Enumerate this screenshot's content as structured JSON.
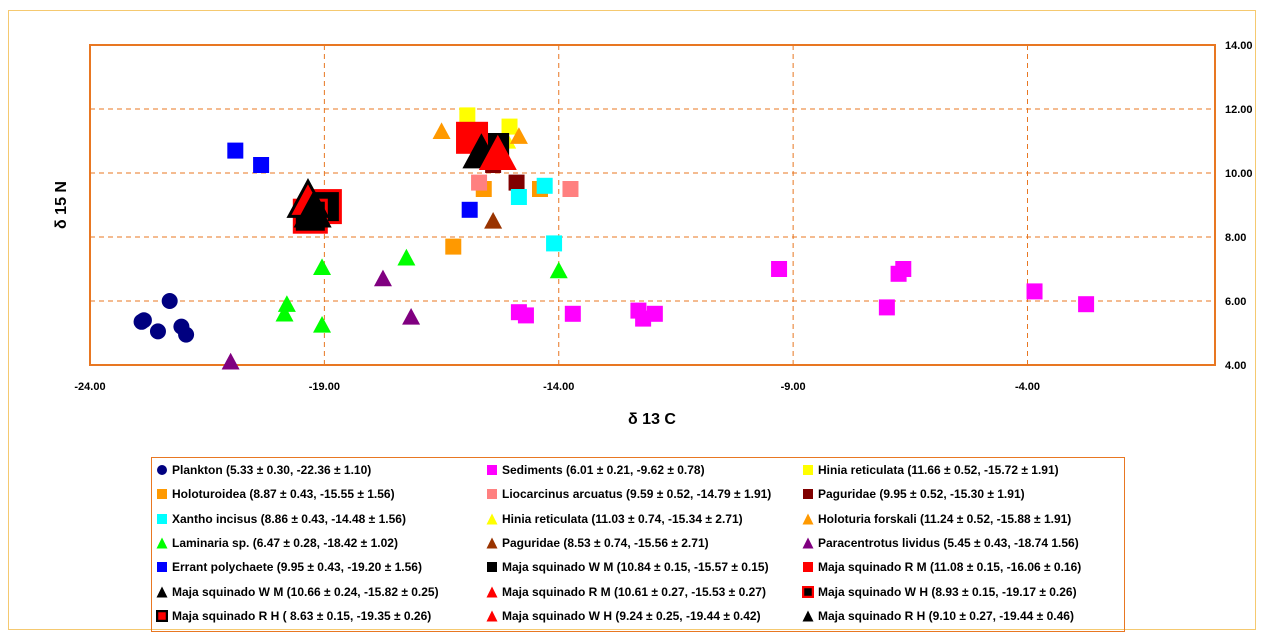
{
  "chart_data": {
    "type": "scatter",
    "title": "",
    "xlabel": "δ 13 C",
    "ylabel": "δ 15 N",
    "xlim": [
      -24,
      0
    ],
    "ylim": [
      4,
      14
    ],
    "x_ticks": [
      "-24.00",
      "-19.00",
      "-14.00",
      "-9.00",
      "-4.00"
    ],
    "y_ticks": [
      "4.00",
      "6.00",
      "8.00",
      "10.00",
      "12.00",
      "14.00"
    ],
    "grid": true,
    "y_axis_side": "right",
    "legend_position": "bottom",
    "series": [
      {
        "name": "Plankton (5.33 ± 0.30, -22.36 ± 1.10)",
        "marker": "circle",
        "color": "#000080",
        "points": [
          [
            -22.85,
            5.4
          ],
          [
            -22.3,
            6.0
          ],
          [
            -22.55,
            5.05
          ],
          [
            -22.05,
            5.2
          ],
          [
            -21.95,
            4.95
          ],
          [
            -22.9,
            5.35
          ]
        ]
      },
      {
        "name": "Sediments (6.01 ± 0.21, -9.62 ± 0.78)",
        "marker": "square",
        "color": "#ff00ff",
        "points": [
          [
            -14.85,
            5.65
          ],
          [
            -14.7,
            5.55
          ],
          [
            -13.7,
            5.6
          ],
          [
            -12.3,
            5.7
          ],
          [
            -12.2,
            5.45
          ],
          [
            -11.95,
            5.6
          ],
          [
            -9.3,
            7.0
          ],
          [
            -7.0,
            5.8
          ],
          [
            -6.75,
            6.85
          ],
          [
            -6.65,
            7.0
          ],
          [
            -3.85,
            6.3
          ],
          [
            -2.75,
            5.9
          ]
        ]
      },
      {
        "name": "Hinia reticulata (11.66 ± 0.52, -15.72 ± 1.91)",
        "marker": "square",
        "color": "#ffff00",
        "points": [
          [
            -15.95,
            11.8
          ],
          [
            -15.05,
            11.45
          ]
        ]
      },
      {
        "name": "Holoturoidea (8.87 ± 0.43, -15.55 ± 1.56)",
        "marker": "square",
        "color": "#ff9900",
        "points": [
          [
            -16.25,
            7.7
          ],
          [
            -15.6,
            9.5
          ],
          [
            -14.4,
            9.5
          ]
        ]
      },
      {
        "name": "Liocarcinus arcuatus (9.59 ± 0.52, -14.79 ± 1.91)",
        "marker": "square",
        "color": "#ff8080",
        "points": [
          [
            -15.7,
            9.7
          ],
          [
            -13.75,
            9.5
          ]
        ]
      },
      {
        "name": "Paguridae (9.95 ± 0.52, -15.30 ± 1.91)",
        "marker": "square",
        "color": "#800000",
        "points": [
          [
            -15.4,
            10.25
          ],
          [
            -14.9,
            9.7
          ]
        ]
      },
      {
        "name": "Xantho incisus (8.86 ± 0.43, -14.48 ± 1.56)",
        "marker": "square",
        "color": "#00ffff",
        "points": [
          [
            -14.3,
            9.6
          ],
          [
            -14.85,
            9.25
          ],
          [
            -14.1,
            7.8
          ]
        ]
      },
      {
        "name": "Hinia reticulata (11.03 ± 0.74, -15.34 ± 2.71)",
        "marker": "triangle",
        "color": "#ffff00",
        "points": [
          [
            -15.1,
            11.0
          ]
        ]
      },
      {
        "name": "Holoturia forskali (11.24 ± 0.52, -15.88 ± 1.91)",
        "marker": "triangle",
        "color": "#ff9900",
        "points": [
          [
            -16.5,
            11.3
          ],
          [
            -14.85,
            11.15
          ]
        ]
      },
      {
        "name": "Laminaria sp.  (6.47 ± 0.28, -18.42 ± 1.02)",
        "marker": "triangle",
        "color": "#00ff00",
        "points": [
          [
            -19.8,
            5.9
          ],
          [
            -19.85,
            5.6
          ],
          [
            -19.05,
            7.05
          ],
          [
            -19.05,
            5.25
          ],
          [
            -17.25,
            7.35
          ],
          [
            -14.0,
            6.95
          ]
        ]
      },
      {
        "name": "Paguridae (8.53 ± 0.74, -15.56 ± 2.71)",
        "marker": "triangle",
        "color": "#993300",
        "points": [
          [
            -15.4,
            8.5
          ]
        ]
      },
      {
        "name": "Paracentrotus lividus (5.45 ± 0.43, -18.74  1.56)",
        "marker": "triangle",
        "color": "#800080",
        "points": [
          [
            -21.0,
            4.1
          ],
          [
            -17.75,
            6.7
          ],
          [
            -17.15,
            5.5
          ]
        ]
      },
      {
        "name": "Errant polychaete (9.95 ± 0.43, -19.20 ± 1.56)",
        "marker": "square",
        "color": "#0000ff",
        "points": [
          [
            -20.9,
            10.7
          ],
          [
            -20.35,
            10.25
          ],
          [
            -15.9,
            8.85
          ]
        ]
      },
      {
        "name": "Maja squinado  W M (10.84 ± 0.15, -15.57 ± 0.15)",
        "marker": "square-big",
        "color": "#000000",
        "points": [
          [
            -15.4,
            10.75
          ]
        ]
      },
      {
        "name": "Maja squinado  R M (11.08 ± 0.15, -16.06 ± 0.16)",
        "marker": "square-big",
        "color": "#ff0000",
        "points": [
          [
            -15.85,
            11.1
          ]
        ]
      },
      {
        "name": "Maja squinado  W M (10.66 ± 0.24, -15.82 ± 0.25)",
        "marker": "triangle-big",
        "color": "#000000",
        "points": [
          [
            -15.65,
            10.65
          ]
        ]
      },
      {
        "name": "Maja squinado  R M (10.61 ± 0.27, -15.53 ± 0.27)",
        "marker": "triangle-big",
        "color": "#ff0000",
        "points": [
          [
            -15.3,
            10.6
          ]
        ]
      },
      {
        "name": "Maja squinado  W H (8.93 ± 0.15, -19.17 ± 0.26)",
        "marker": "square-big-outline",
        "color": "#000000",
        "edge": "#ff0000",
        "points": [
          [
            -19.0,
            8.95
          ]
        ]
      },
      {
        "name": "Maja squinado  R H ( 8.63 ± 0.15, -19.35 ± 0.26)",
        "marker": "square-big-outline",
        "color": "#000000",
        "edge": "#ff0000",
        "points": [
          [
            -19.3,
            8.65
          ]
        ]
      },
      {
        "name": "Maja squinado  W H (9.24 ± 0.25, -19.44 ± 0.42)",
        "marker": "triangle-big",
        "color": "#ff0000",
        "edge": "#000000",
        "points": [
          [
            -19.35,
            9.15
          ]
        ]
      },
      {
        "name": "Maja squinado  R H (9.10 ± 0.27, -19.44 ± 0.46)",
        "marker": "triangle-big",
        "color": "#000000",
        "points": [
          [
            -19.25,
            8.8
          ]
        ]
      }
    ],
    "legend_icons": [
      {
        "marker": "circle",
        "color": "#000080"
      },
      {
        "marker": "square",
        "color": "#ff00ff"
      },
      {
        "marker": "square",
        "color": "#ffff00"
      },
      {
        "marker": "square",
        "color": "#ff9900"
      },
      {
        "marker": "square",
        "color": "#ff8080"
      },
      {
        "marker": "square",
        "color": "#800000"
      },
      {
        "marker": "square",
        "color": "#00ffff"
      },
      {
        "marker": "triangle",
        "color": "#ffff00"
      },
      {
        "marker": "triangle",
        "color": "#ff9900"
      },
      {
        "marker": "triangle",
        "color": "#00ff00"
      },
      {
        "marker": "triangle",
        "color": "#993300"
      },
      {
        "marker": "triangle",
        "color": "#800080"
      },
      {
        "marker": "square",
        "color": "#0000ff"
      },
      {
        "marker": "square",
        "color": "#000000"
      },
      {
        "marker": "square",
        "color": "#ff0000"
      },
      {
        "marker": "triangle",
        "color": "#000000"
      },
      {
        "marker": "triangle",
        "color": "#ff0000"
      },
      {
        "marker": "square-outline",
        "color": "#000000",
        "edge": "#ff0000"
      },
      {
        "marker": "square-outline",
        "color": "#ff0000",
        "edge": "#000000"
      },
      {
        "marker": "triangle",
        "color": "#ff0000"
      },
      {
        "marker": "triangle",
        "color": "#000000"
      }
    ],
    "colors": {
      "plot_border": "#e87722",
      "grid": "#e87722",
      "outer_border": "#f5c970"
    }
  }
}
